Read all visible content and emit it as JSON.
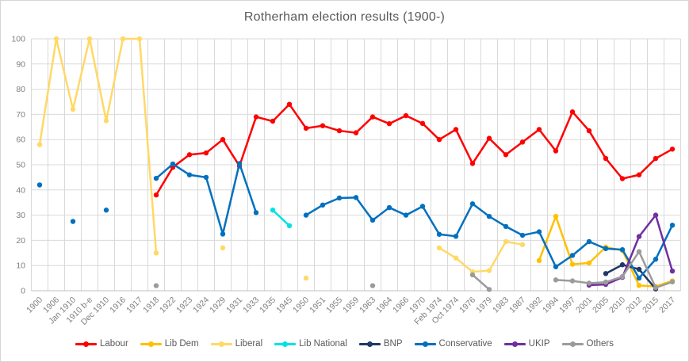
{
  "figure": {
    "title": "Rotherham election results (1900-)"
  },
  "chart_data": {
    "type": "line",
    "title": "Rotherham election results (1900-)",
    "xlabel": "",
    "ylabel": "",
    "ylim": [
      0,
      100
    ],
    "ytick_step": 10,
    "grid": true,
    "legend_position": "bottom",
    "colors": {
      "plot_grid": "#d9d9d9",
      "axis_line": "#bfbfbf",
      "tick_text": "#7f7f7f",
      "title_text": "#595959",
      "legend_text": "#595959"
    },
    "categories": [
      "1900",
      "1906",
      "Jan 1910",
      "1910 b-e",
      "Dec 1910",
      "1916",
      "1917",
      "1918",
      "1922",
      "1923",
      "1924",
      "1929",
      "1931",
      "1933",
      "1935",
      "1945",
      "1950",
      "1951",
      "1955",
      "1959",
      "1963",
      "1964",
      "1966",
      "1970",
      "Feb 1974",
      "Oct 1974",
      "1976",
      "1979",
      "1983",
      "1987",
      "1992",
      "1994",
      "1997",
      "2001",
      "2005",
      "2010",
      "2012",
      "2015",
      "2017"
    ],
    "series": [
      {
        "name": "Labour",
        "color": "#ff0000",
        "values": [
          null,
          null,
          null,
          null,
          null,
          null,
          null,
          38,
          49,
          54,
          54.7,
          60,
          49.5,
          69,
          67.3,
          74,
          64.5,
          65.5,
          63.5,
          62.7,
          69,
          66.3,
          69.5,
          66.4,
          60,
          64,
          50.5,
          60.5,
          54,
          59,
          64,
          55.5,
          71,
          63.5,
          52.5,
          44.5,
          46,
          52.5,
          56.2
        ]
      },
      {
        "name": "Lib Dem",
        "color": "#ffc000",
        "values": [
          null,
          null,
          null,
          null,
          null,
          null,
          null,
          null,
          null,
          null,
          null,
          null,
          null,
          null,
          null,
          null,
          null,
          null,
          null,
          null,
          null,
          null,
          null,
          null,
          null,
          null,
          null,
          null,
          null,
          null,
          12,
          29.5,
          10.5,
          11,
          17.3,
          16,
          2.1,
          1.7,
          3.9
        ]
      },
      {
        "name": "Liberal",
        "color": "#ffd966",
        "values": [
          58,
          100,
          72,
          100,
          67.5,
          100,
          100,
          15,
          null,
          null,
          null,
          17,
          null,
          null,
          null,
          null,
          5,
          null,
          null,
          null,
          null,
          null,
          null,
          null,
          17,
          13,
          7.5,
          8,
          19.5,
          18.3,
          null,
          null,
          null,
          null,
          null,
          null,
          null,
          null,
          null
        ]
      },
      {
        "name": "Lib National",
        "color": "#00e3e3",
        "values": [
          null,
          null,
          null,
          null,
          null,
          null,
          null,
          null,
          null,
          null,
          null,
          null,
          null,
          null,
          32,
          25.8,
          null,
          null,
          null,
          null,
          null,
          null,
          null,
          null,
          null,
          null,
          null,
          null,
          null,
          null,
          null,
          null,
          null,
          null,
          null,
          null,
          null,
          null,
          null
        ]
      },
      {
        "name": "BNP",
        "color": "#1f3864",
        "values": [
          null,
          null,
          null,
          null,
          null,
          null,
          null,
          null,
          null,
          null,
          null,
          null,
          null,
          null,
          null,
          null,
          null,
          null,
          null,
          null,
          null,
          null,
          null,
          null,
          null,
          null,
          null,
          null,
          null,
          null,
          null,
          null,
          null,
          null,
          6.8,
          10.3,
          8.5,
          0.7,
          null
        ]
      },
      {
        "name": "Conservative",
        "color": "#0070c0",
        "values": [
          42,
          null,
          27.5,
          null,
          32,
          null,
          null,
          44.6,
          50.3,
          46,
          45,
          22.5,
          50.5,
          31,
          null,
          null,
          30,
          34,
          36.8,
          37,
          28,
          33,
          30,
          33.5,
          22.4,
          21.6,
          34.5,
          29.5,
          25.5,
          22,
          23.4,
          9.5,
          14,
          19.5,
          16.7,
          16.3,
          5,
          12.5,
          26
        ]
      },
      {
        "name": "UKIP",
        "color": "#7030a0",
        "values": [
          null,
          null,
          null,
          null,
          null,
          null,
          null,
          null,
          null,
          null,
          null,
          null,
          null,
          null,
          null,
          null,
          null,
          null,
          null,
          null,
          null,
          null,
          null,
          null,
          null,
          null,
          null,
          null,
          null,
          null,
          null,
          null,
          null,
          2.2,
          2.5,
          5.3,
          21.5,
          30,
          7.8
        ]
      },
      {
        "name": "Others",
        "color": "#9b9b9b",
        "values": [
          null,
          null,
          null,
          null,
          null,
          null,
          null,
          2,
          null,
          null,
          null,
          null,
          null,
          null,
          null,
          null,
          null,
          null,
          null,
          null,
          2,
          null,
          null,
          null,
          null,
          null,
          6.3,
          0.5,
          null,
          null,
          null,
          4.3,
          3.9,
          3,
          3.4,
          5.6,
          15.5,
          1.2,
          3.5
        ]
      }
    ]
  }
}
